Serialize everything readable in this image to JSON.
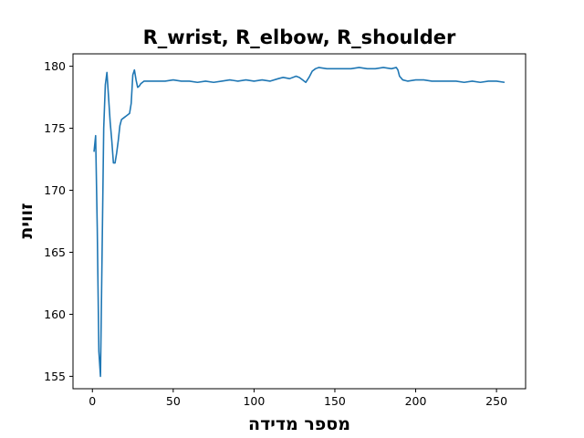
{
  "chart_data": {
    "type": "line",
    "title": "R_wrist, R_elbow, R_shoulder",
    "xlabel": "מספר מדידה",
    "ylabel": "זווית",
    "xlim": [
      -12,
      268
    ],
    "ylim": [
      154.0,
      181.0
    ],
    "xticks": [
      0,
      50,
      100,
      150,
      200,
      250
    ],
    "yticks": [
      155,
      160,
      165,
      170,
      175,
      180
    ],
    "grid": false,
    "series": [
      {
        "color": "#1f77b4",
        "points": [
          [
            1,
            173.1
          ],
          [
            2,
            174.4
          ],
          [
            3,
            167.0
          ],
          [
            4,
            157.0
          ],
          [
            5,
            155.0
          ],
          [
            6,
            165.0
          ],
          [
            7,
            175.0
          ],
          [
            8,
            178.5
          ],
          [
            9,
            179.5
          ],
          [
            10,
            177.5
          ],
          [
            11,
            175.5
          ],
          [
            12,
            174.0
          ],
          [
            13,
            172.2
          ],
          [
            14,
            172.2
          ],
          [
            15,
            173.0
          ],
          [
            16,
            174.0
          ],
          [
            17,
            175.2
          ],
          [
            18,
            175.7
          ],
          [
            19,
            175.8
          ],
          [
            20,
            175.9
          ],
          [
            21,
            176.0
          ],
          [
            22,
            176.1
          ],
          [
            23,
            176.2
          ],
          [
            24,
            177.0
          ],
          [
            25,
            179.3
          ],
          [
            26,
            179.7
          ],
          [
            27,
            178.9
          ],
          [
            28,
            178.3
          ],
          [
            29,
            178.4
          ],
          [
            30,
            178.6
          ],
          [
            32,
            178.8
          ],
          [
            35,
            178.8
          ],
          [
            40,
            178.8
          ],
          [
            45,
            178.8
          ],
          [
            50,
            178.9
          ],
          [
            55,
            178.8
          ],
          [
            60,
            178.8
          ],
          [
            65,
            178.7
          ],
          [
            70,
            178.8
          ],
          [
            75,
            178.7
          ],
          [
            80,
            178.8
          ],
          [
            85,
            178.9
          ],
          [
            90,
            178.8
          ],
          [
            95,
            178.9
          ],
          [
            100,
            178.8
          ],
          [
            105,
            178.9
          ],
          [
            110,
            178.8
          ],
          [
            115,
            179.0
          ],
          [
            118,
            179.1
          ],
          [
            122,
            179.0
          ],
          [
            126,
            179.2
          ],
          [
            128,
            179.1
          ],
          [
            130,
            178.9
          ],
          [
            132,
            178.7
          ],
          [
            134,
            179.1
          ],
          [
            136,
            179.6
          ],
          [
            138,
            179.8
          ],
          [
            140,
            179.9
          ],
          [
            145,
            179.8
          ],
          [
            150,
            179.8
          ],
          [
            155,
            179.8
          ],
          [
            160,
            179.8
          ],
          [
            165,
            179.9
          ],
          [
            170,
            179.8
          ],
          [
            175,
            179.8
          ],
          [
            180,
            179.9
          ],
          [
            185,
            179.8
          ],
          [
            188,
            179.9
          ],
          [
            189,
            179.7
          ],
          [
            190,
            179.2
          ],
          [
            192,
            178.9
          ],
          [
            195,
            178.8
          ],
          [
            200,
            178.9
          ],
          [
            205,
            178.9
          ],
          [
            210,
            178.8
          ],
          [
            215,
            178.8
          ],
          [
            220,
            178.8
          ],
          [
            225,
            178.8
          ],
          [
            230,
            178.7
          ],
          [
            235,
            178.8
          ],
          [
            240,
            178.7
          ],
          [
            245,
            178.8
          ],
          [
            250,
            178.8
          ],
          [
            255,
            178.7
          ]
        ]
      }
    ]
  }
}
